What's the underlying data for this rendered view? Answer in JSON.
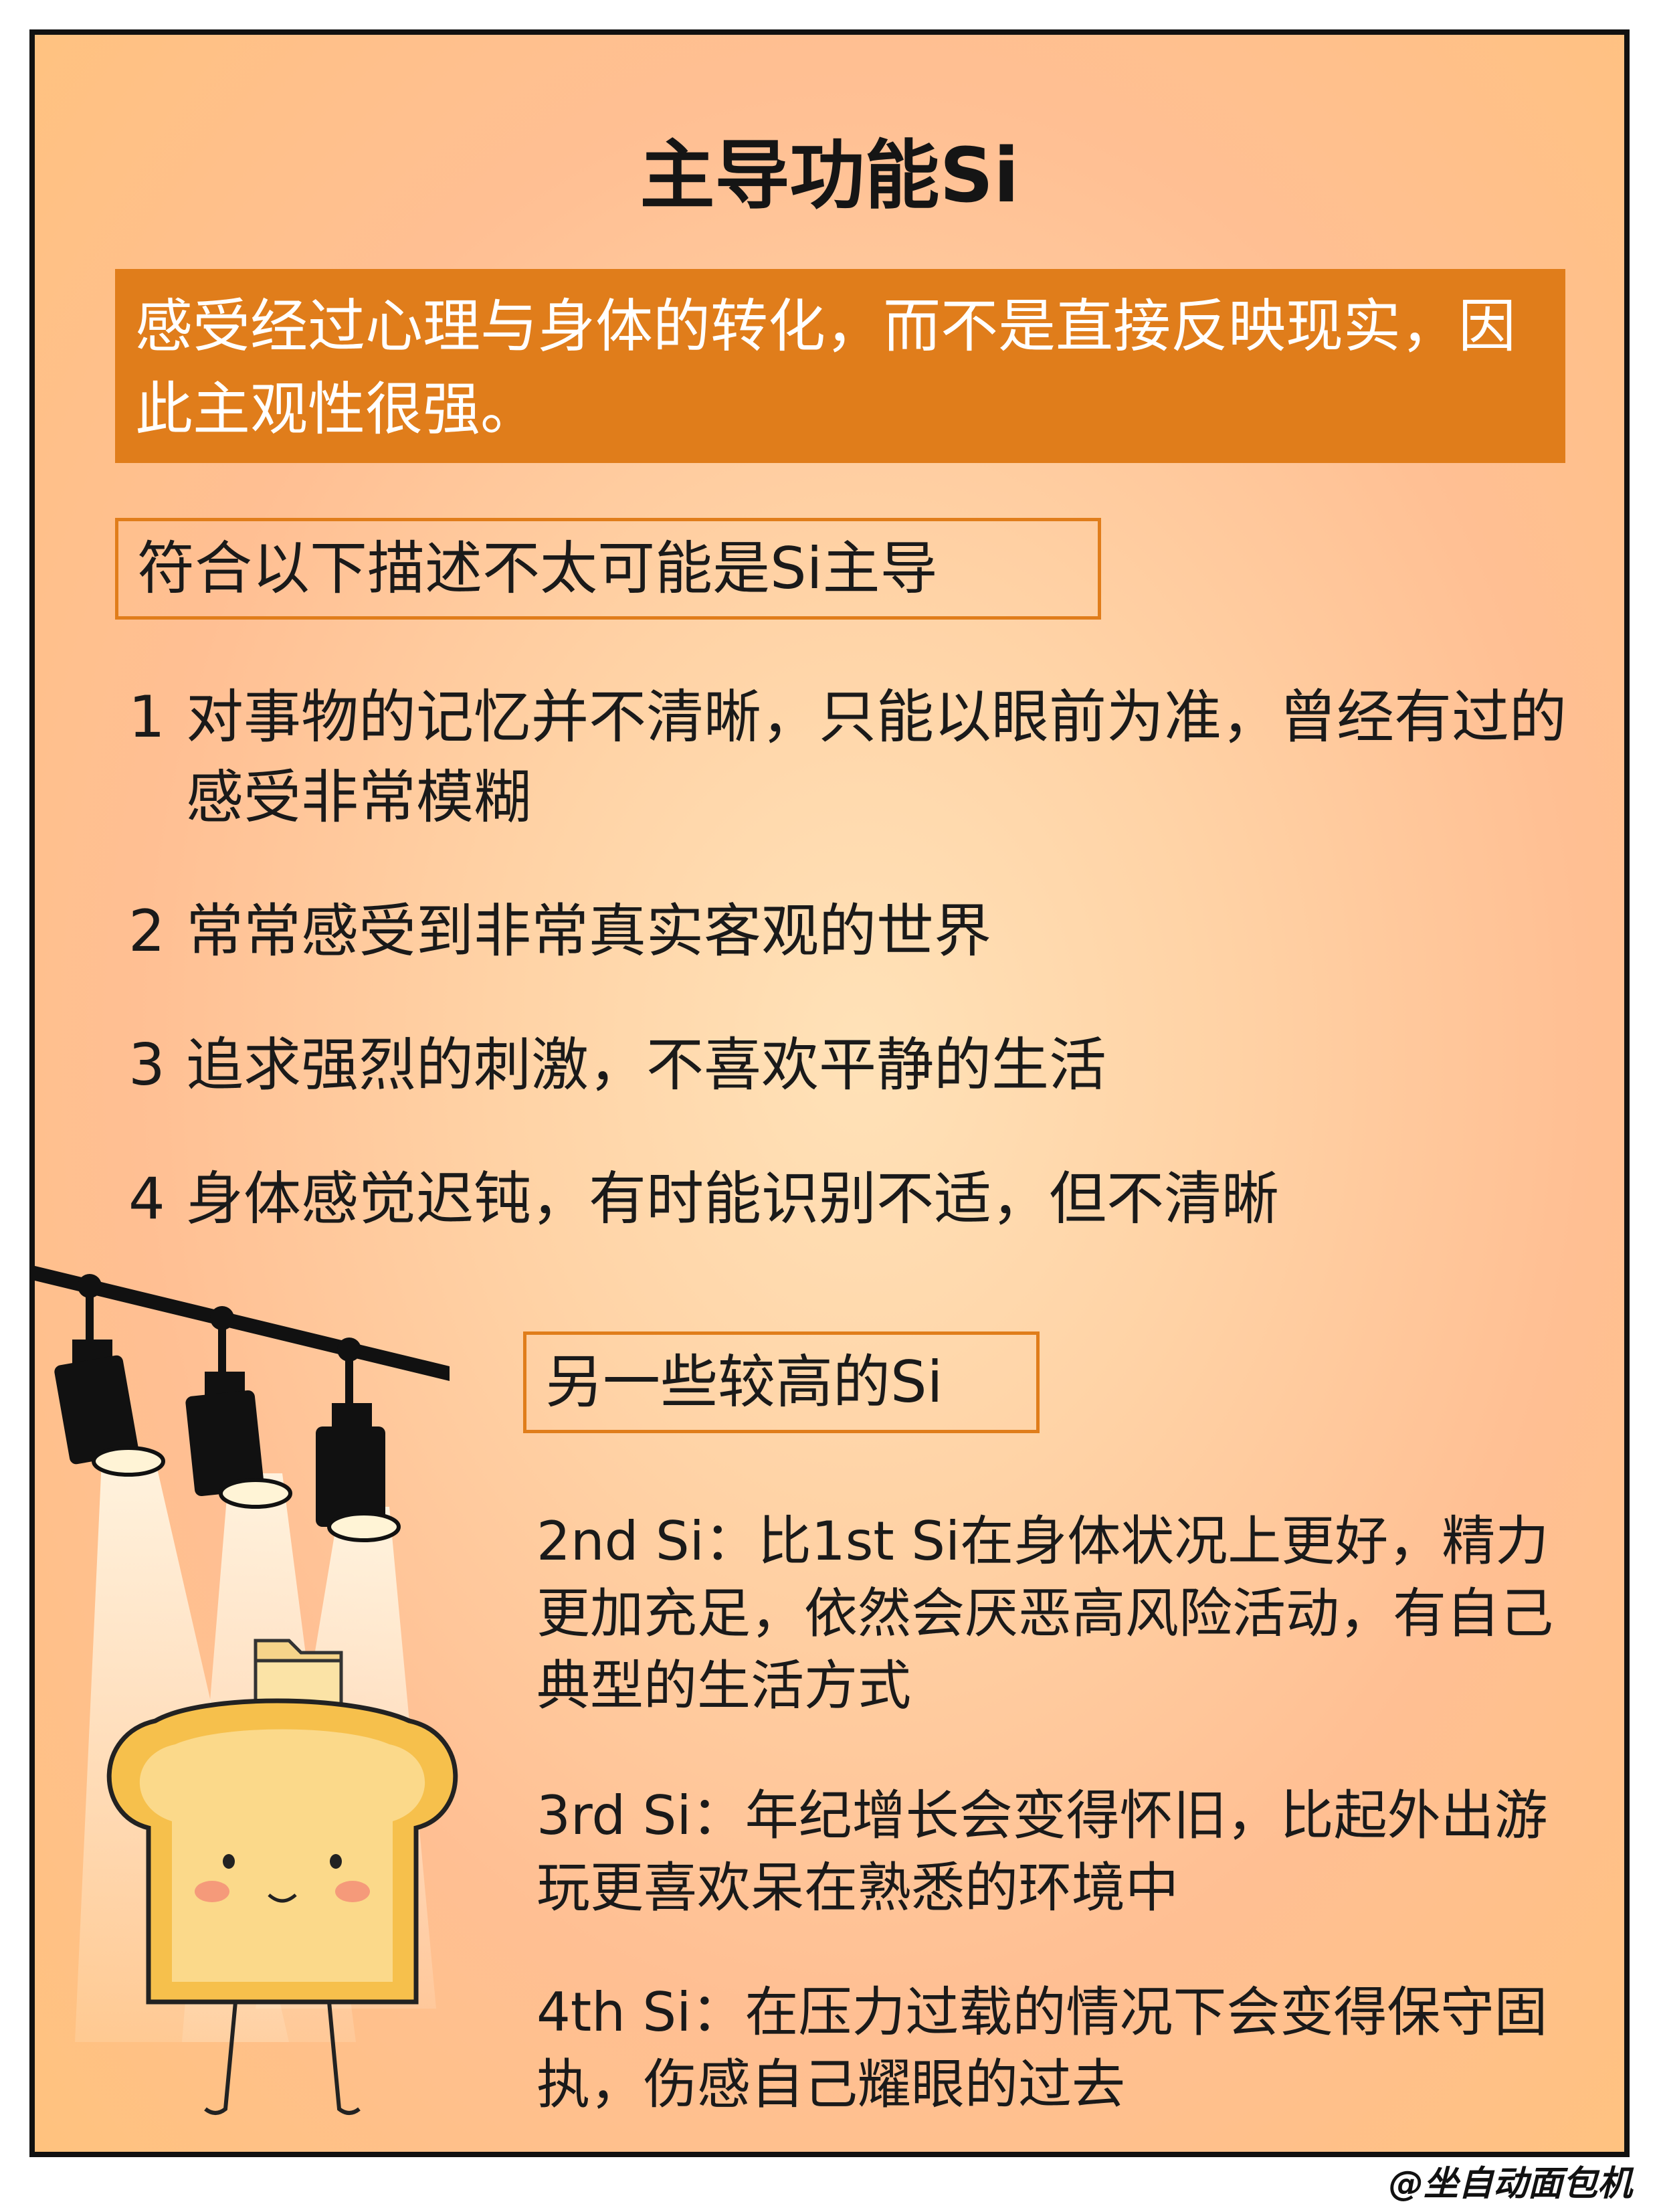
{
  "title": "主导功能Si",
  "highlight": "感受经过心理与身体的转化，而不是直接反映现实，因此主观性很强。",
  "section1": {
    "label": "符合以下描述不太可能是Si主导",
    "items": [
      {
        "num": "1",
        "text": "对事物的记忆并不清晰，只能以眼前为准，曾经有过的感受非常模糊"
      },
      {
        "num": "2",
        "text": "常常感受到非常真实客观的世界"
      },
      {
        "num": "3",
        "text": "追求强烈的刺激，不喜欢平静的生活"
      },
      {
        "num": "4",
        "text": "身体感觉迟钝，有时能识别不适，但不清晰"
      }
    ]
  },
  "section2": {
    "label": "另一些较高的Si",
    "items": [
      "2nd Si：比1st Si在身体状况上更好，精力更加充足，依然会厌恶高风险活动，有自己典型的生活方式",
      "3rd Si：年纪增长会变得怀旧，比起外出游玩更喜欢呆在熟悉的环境中",
      "4th Si：在压力过载的情况下会变得保守固执，伤感自己耀眼的过去"
    ]
  },
  "watermark": "@坐自动面包机",
  "colors": {
    "accent": "#e07d1b",
    "background": "#ffd3a6",
    "text": "#1a1a1a"
  },
  "illustration": {
    "icons": [
      "spotlight-icon",
      "folder-icon",
      "toast-character-icon"
    ]
  }
}
